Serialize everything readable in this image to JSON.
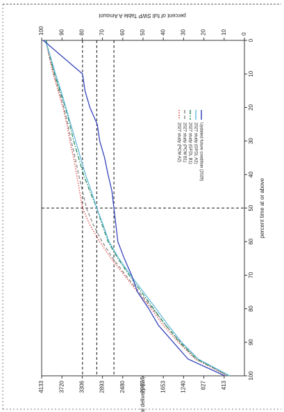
{
  "chart_data": {
    "type": "line",
    "xlabel": "percent time at or above",
    "ylabel": "annual delivery (taf)",
    "y2label": "percent of full SWP Table A Amount",
    "x": [
      0,
      5,
      10,
      15,
      20,
      25,
      30,
      35,
      40,
      45,
      50,
      55,
      60,
      65,
      70,
      75,
      80,
      85,
      90,
      95,
      100
    ],
    "xlim": [
      0,
      100
    ],
    "xticks": [
      0,
      10,
      20,
      30,
      40,
      50,
      60,
      70,
      80,
      90,
      100
    ],
    "ylim": [
      0,
      4133
    ],
    "yticks": [
      413,
      827,
      1240,
      1653,
      2067,
      2480,
      2893,
      3306,
      3720,
      4133
    ],
    "y2lim": [
      0,
      100
    ],
    "y2ticks": [
      0,
      10,
      20,
      30,
      40,
      50,
      60,
      70,
      80,
      90,
      100
    ],
    "reference_y": [
      3300,
      3010,
      2660
    ],
    "reference_x": [
      50
    ],
    "series": [
      {
        "name": "2027 study (PCM A2)",
        "color": "#e04040",
        "linestyle": "dotted",
        "values": [
          4050,
          3980,
          3900,
          3800,
          3700,
          3620,
          3560,
          3480,
          3420,
          3360,
          3300,
          3150,
          2950,
          2720,
          2450,
          2180,
          1900,
          1650,
          1350,
          1000,
          350
        ]
      },
      {
        "name": "2027 study (PCM B1)",
        "color": "#8a8a8a",
        "linestyle": "dashed",
        "values": [
          4050,
          3970,
          3880,
          3780,
          3680,
          3600,
          3530,
          3450,
          3380,
          3300,
          3220,
          3080,
          2900,
          2680,
          2420,
          2150,
          1870,
          1600,
          1300,
          950,
          330
        ]
      },
      {
        "name": "2027 study (GFDL B1)",
        "color": "#2a8a5a",
        "linestyle": "dashdot",
        "values": [
          4040,
          3960,
          3870,
          3760,
          3650,
          3560,
          3480,
          3380,
          3280,
          3150,
          3010,
          2900,
          2780,
          2580,
          2350,
          2100,
          1850,
          1600,
          1320,
          980,
          320
        ]
      },
      {
        "name": "2027 study (GFDL A2)",
        "color": "#66bbdd",
        "linestyle": "solid",
        "values": [
          4060,
          3950,
          3850,
          3740,
          3640,
          3540,
          3440,
          3340,
          3240,
          3120,
          3010,
          2880,
          2760,
          2560,
          2320,
          2060,
          1800,
          1550,
          1280,
          940,
          300
        ]
      },
      {
        "name": "Updated future condition (2029)",
        "color": "#3344bb",
        "linestyle": "solid",
        "values": [
          4100,
          3700,
          3300,
          3250,
          3150,
          3000,
          2950,
          2850,
          2780,
          2700,
          2660,
          2620,
          2580,
          2450,
          2300,
          2180,
          1950,
          1750,
          1450,
          1150,
          400
        ]
      }
    ]
  }
}
